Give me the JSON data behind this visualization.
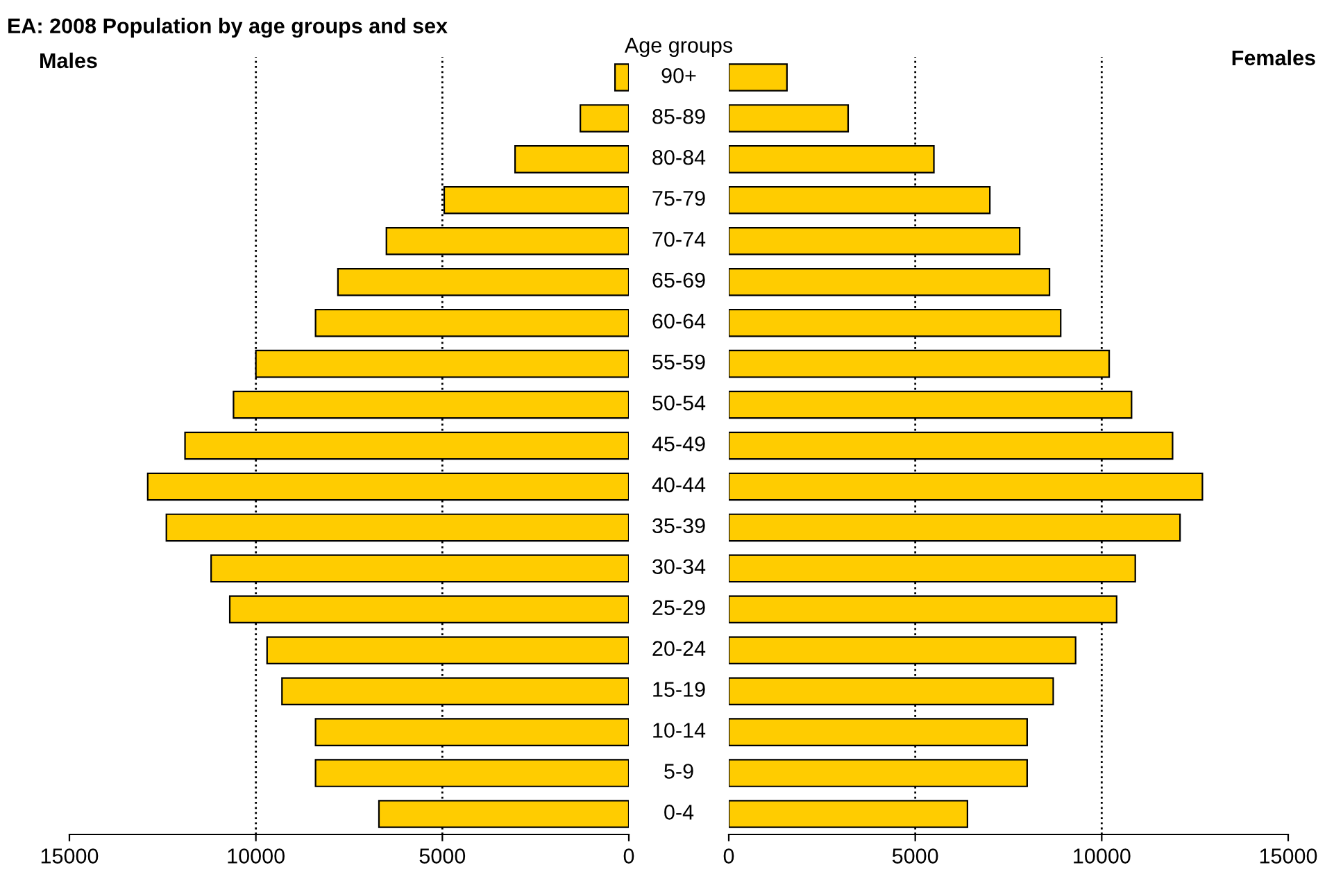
{
  "chart_data": [
    {
      "type": "bar",
      "orientation": "horizontal",
      "title": "EA: 2008 Population by age groups and sex",
      "subtitle": "Males",
      "categories": [
        null,
        null,
        null,
        null,
        null,
        null,
        null,
        null,
        null,
        null,
        null,
        null,
        null,
        null,
        null,
        null,
        null,
        null,
        null
      ],
      "series": [
        {
          "color": "#ffcc00",
          "values": [
            370,
            1300,
            3050,
            4950,
            6500,
            7800,
            8400,
            10000,
            10600,
            11900,
            12900,
            12400,
            11200,
            10700,
            9700,
            9300,
            8400,
            8400,
            6700
          ]
        }
      ],
      "xlim": [
        15000,
        0
      ],
      "xticks": [
        15000,
        10000,
        5000,
        0
      ],
      "tick_labels": "x",
      "ref_lines": [
        {
          "axis": "x",
          "value": 10000,
          "line_style": "dotted",
          "color": "#000000"
        },
        {
          "axis": "x",
          "value": 5000,
          "line_style": "dotted",
          "color": "#000000"
        }
      ]
    },
    {
      "type": "bar",
      "orientation": "horizontal",
      "subtitle": "Females",
      "ylabel": "Age groups",
      "categories": [
        "90+",
        "85-89",
        "80-84",
        "75-79",
        "70-74",
        "65-69",
        "60-64",
        "55-59",
        "50-54",
        "45-49",
        "40-44",
        "35-39",
        "30-34",
        "25-29",
        "20-24",
        "15-19",
        "10-14",
        "5-9",
        "0-4"
      ],
      "series": [
        {
          "color": "#ffcc00",
          "values": [
            1560,
            3200,
            5500,
            7000,
            7800,
            8600,
            8900,
            10200,
            10800,
            11900,
            12700,
            12100,
            10900,
            10400,
            9300,
            8700,
            8000,
            8000,
            6400
          ]
        }
      ],
      "xlim": [
        0,
        15000
      ],
      "xticks": [
        0,
        5000,
        10000,
        15000
      ],
      "ref_lines": [
        {
          "axis": "x",
          "value": 5000,
          "line_style": "dotted",
          "color": "#000000"
        },
        {
          "axis": "x",
          "value": 10000,
          "line_style": "dotted",
          "color": "#000000"
        }
      ]
    }
  ]
}
